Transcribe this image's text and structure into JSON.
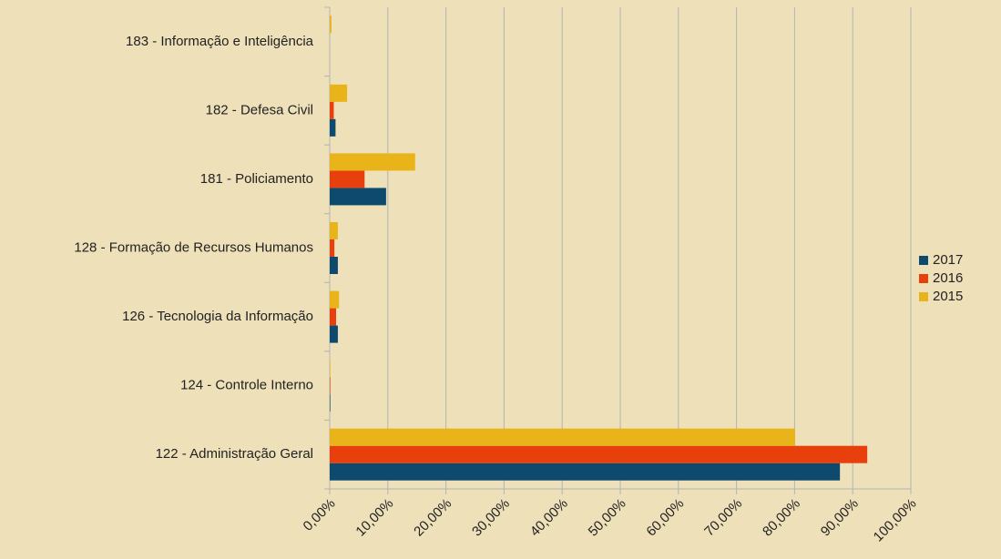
{
  "chart_data": {
    "type": "bar",
    "orientation": "horizontal",
    "categories": [
      "183 - Informação e Inteligência",
      "182 - Defesa Civil",
      "181 - Policiamento",
      "128 - Formação de Recursos Humanos",
      "126 - Tecnologia da Informação",
      "124 - Controle Interno",
      "122 - Administração Geral"
    ],
    "series": [
      {
        "name": "2017",
        "color": "#0e4a6e",
        "values": [
          0,
          1.0,
          9.7,
          1.4,
          1.4,
          0.1,
          87.8
        ]
      },
      {
        "name": "2016",
        "color": "#e8400c",
        "values": [
          0,
          0.7,
          6.0,
          0.8,
          1.1,
          0.1,
          92.5
        ]
      },
      {
        "name": "2015",
        "color": "#e8b41a",
        "values": [
          0.3,
          3.0,
          14.7,
          1.4,
          1.6,
          0.1,
          80.1
        ]
      }
    ],
    "xlim": [
      0,
      100
    ],
    "xticks": [
      {
        "value": 0,
        "label": "0,00%"
      },
      {
        "value": 10,
        "label": "10,00%"
      },
      {
        "value": 20,
        "label": "20,00%"
      },
      {
        "value": 30,
        "label": "30,00%"
      },
      {
        "value": 40,
        "label": "40,00%"
      },
      {
        "value": 50,
        "label": "50,00%"
      },
      {
        "value": 60,
        "label": "60,00%"
      },
      {
        "value": 70,
        "label": "70,00%"
      },
      {
        "value": 80,
        "label": "80,00%"
      },
      {
        "value": 90,
        "label": "90,00%"
      },
      {
        "value": 100,
        "label": "100,00%"
      }
    ],
    "grid": true,
    "legend": "right"
  }
}
